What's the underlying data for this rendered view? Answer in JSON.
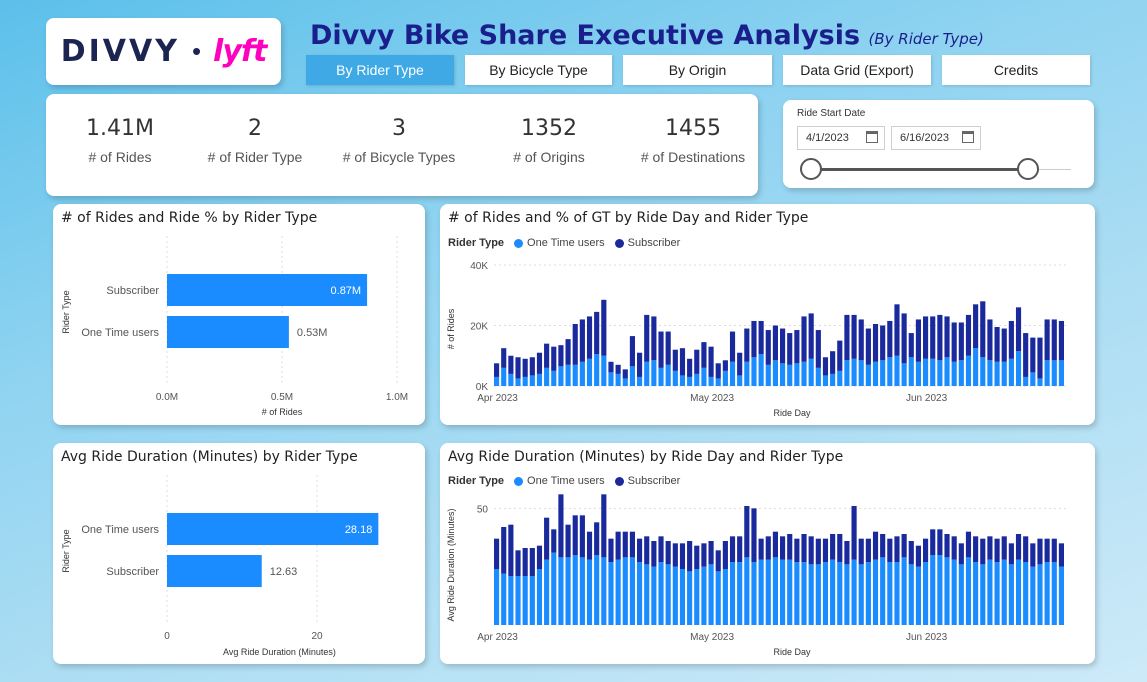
{
  "logo": {
    "divvy": "DIVVY",
    "lyft": "lyft"
  },
  "header": {
    "title": "Divvy Bike Share Executive Analysis",
    "subtitle": "(By Rider Type)"
  },
  "tabs": [
    {
      "label": "By Rider Type",
      "active": true
    },
    {
      "label": "By Bicycle Type",
      "active": false
    },
    {
      "label": "By Origin",
      "active": false
    },
    {
      "label": "Data Grid (Export)",
      "active": false
    },
    {
      "label": "Credits",
      "active": false
    }
  ],
  "kpis": [
    {
      "value": "1.41M",
      "label": "# of Rides"
    },
    {
      "value": "2",
      "label": "# of Rider Type"
    },
    {
      "value": "3",
      "label": "# of Bicycle Types"
    },
    {
      "value": "1352",
      "label": "# of Origins"
    },
    {
      "value": "1455",
      "label": "# of Destinations"
    }
  ],
  "date_filter": {
    "label": "Ride Start Date",
    "start": "4/1/2023",
    "end": "6/16/2023"
  },
  "colors": {
    "one_time": "#1a8cff",
    "subscriber": "#1a2a9c",
    "title": "#1a1f8c",
    "tab_active": "#3fa9e6"
  },
  "chart_data": [
    {
      "type": "bar",
      "title": "# of Rides and Ride % by Rider Type",
      "categories": [
        "Subscriber",
        "One Time users"
      ],
      "values": [
        0.87,
        0.53
      ],
      "data_labels": [
        "0.87M",
        "0.53M"
      ],
      "xlabel": "# of Rides",
      "ylabel": "Rider Type",
      "xticks": [
        "0.0M",
        "0.5M",
        "1.0M"
      ],
      "xlim": [
        0,
        1.0
      ]
    },
    {
      "type": "bar",
      "title": "# of Rides and % of GT by Ride Day and Rider Type",
      "legend_title": "Rider Type",
      "legend": [
        "One Time users",
        "Subscriber"
      ],
      "xlabel": "Ride Day",
      "ylabel": "# of Rides",
      "xticks": [
        "Apr 2023",
        "May 2023",
        "Jun 2023"
      ],
      "yticks": [
        "0K",
        "20K",
        "40K"
      ],
      "ylim": [
        0,
        40000
      ],
      "series": [
        {
          "name": "One Time users",
          "values": [
            3000,
            6000,
            4000,
            2500,
            3000,
            3500,
            4000,
            6000,
            5000,
            6500,
            7000,
            7000,
            8000,
            9000,
            10500,
            10000,
            4500,
            4000,
            2500,
            6500,
            3000,
            8000,
            8500,
            6000,
            7000,
            5000,
            3500,
            3000,
            4000,
            6000,
            3000,
            2500,
            5000,
            8000,
            3500,
            8000,
            9500,
            10500,
            7000,
            8500,
            7500,
            7000,
            7500,
            8000,
            9000,
            6000,
            3500,
            4000,
            5000,
            8500,
            9000,
            8500,
            7000,
            8000,
            8500,
            9500,
            10000,
            7500,
            9500,
            8000,
            9000,
            9000,
            8500,
            9500,
            8000,
            8500,
            10000,
            12500,
            9500,
            8500,
            8000,
            8000,
            9000,
            11500,
            3000,
            4500,
            2500,
            8500,
            8500,
            8500
          ]
        },
        {
          "name": "Subscriber",
          "values": [
            4500,
            6500,
            6000,
            7000,
            6000,
            6000,
            7000,
            8000,
            8000,
            7000,
            8500,
            13500,
            14000,
            14000,
            14000,
            18500,
            3500,
            3000,
            3000,
            10000,
            8000,
            15500,
            14500,
            12000,
            11000,
            7000,
            9000,
            6000,
            8000,
            8500,
            10000,
            5000,
            3500,
            10000,
            7500,
            11000,
            12000,
            11000,
            11500,
            11500,
            11500,
            10500,
            11000,
            15000,
            15000,
            12500,
            6000,
            7500,
            10000,
            15000,
            14500,
            13500,
            12000,
            12500,
            11500,
            12000,
            17000,
            16500,
            8000,
            14000,
            14000,
            14000,
            15000,
            13500,
            13000,
            12500,
            13500,
            14500,
            18500,
            13500,
            11500,
            11000,
            12500,
            14500,
            14500,
            11500,
            13500,
            13500,
            13500,
            13000
          ]
        }
      ]
    },
    {
      "type": "bar",
      "title": "Avg Ride Duration (Minutes) by Rider Type",
      "categories": [
        "One Time users",
        "Subscriber"
      ],
      "values": [
        28.18,
        12.63
      ],
      "data_labels": [
        "28.18",
        "12.63"
      ],
      "xlabel": "Avg Ride Duration (Minutes)",
      "ylabel": "Rider Type",
      "xticks": [
        "0",
        "20"
      ],
      "xlim": [
        0,
        30
      ]
    },
    {
      "type": "bar",
      "title": "Avg Ride Duration (Minutes) by Ride Day and Rider Type",
      "legend_title": "Rider Type",
      "legend": [
        "One Time users",
        "Subscriber"
      ],
      "xlabel": "Ride Day",
      "ylabel": "Avg Ride Duration (Minutes)",
      "xticks": [
        "Apr 2023",
        "May 2023",
        "Jun 2023"
      ],
      "yticks": [
        "50"
      ],
      "ylim": [
        0,
        60
      ],
      "series": [
        {
          "name": "One Time users",
          "values": [
            24,
            22,
            21,
            21,
            21,
            21,
            24,
            28,
            31,
            29,
            29,
            30,
            29,
            28,
            30,
            29,
            27,
            28,
            29,
            29,
            27,
            26,
            25,
            27,
            26,
            25,
            24,
            23,
            24,
            25,
            26,
            23,
            24,
            27,
            27,
            29,
            27,
            28,
            28,
            29,
            28,
            28,
            27,
            27,
            26,
            26,
            27,
            28,
            27,
            26,
            28,
            26,
            27,
            28,
            29,
            27,
            27,
            29,
            26,
            25,
            27,
            30,
            30,
            29,
            28,
            26,
            29,
            27,
            26,
            28,
            27,
            28,
            26,
            28,
            27,
            25,
            26,
            27,
            27,
            25
          ]
        },
        {
          "name": "Subscriber",
          "values": [
            13,
            20,
            22,
            11,
            12,
            12,
            10,
            18,
            10,
            27,
            14,
            17,
            18,
            12,
            14,
            27,
            10,
            12,
            11,
            11,
            10,
            12,
            11,
            11,
            10,
            10,
            11,
            13,
            10,
            10,
            10,
            9,
            12,
            11,
            11,
            22,
            23,
            9,
            10,
            11,
            10,
            11,
            10,
            12,
            12,
            11,
            10,
            11,
            12,
            10,
            23,
            11,
            10,
            12,
            10,
            10,
            11,
            10,
            10,
            9,
            10,
            11,
            11,
            10,
            10,
            9,
            11,
            11,
            11,
            10,
            10,
            10,
            9,
            11,
            11,
            10,
            11,
            10,
            10,
            10
          ]
        }
      ]
    }
  ]
}
